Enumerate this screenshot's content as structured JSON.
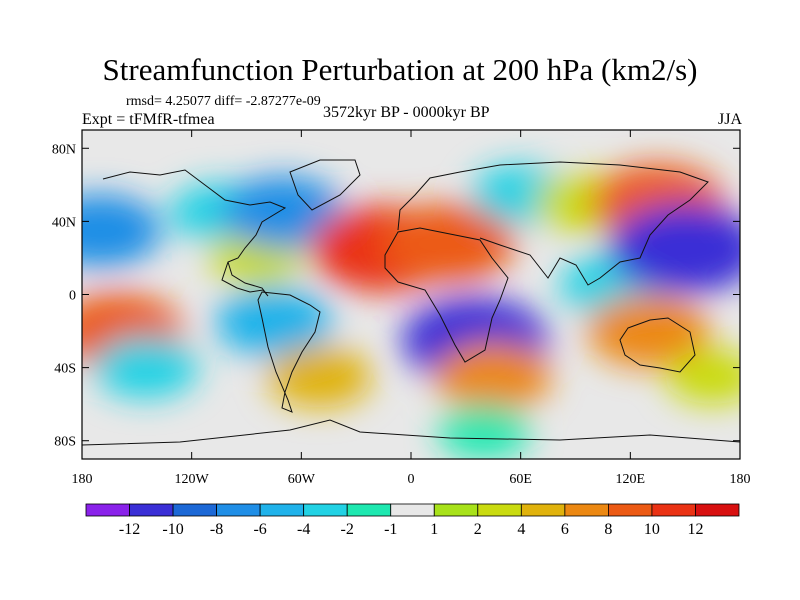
{
  "chart_data": {
    "type": "heatmap",
    "title": "Streamfunction Perturbation at 200 hPa (km2/s)",
    "stats_line": "rmsd= 4.25077 diff= -2.87277e-09",
    "left_label": "Expt = tFMfR-tfmea",
    "center_label": "3572kyr BP - 0000kyr BP",
    "right_label": "JJA",
    "xlim": [
      -180,
      180
    ],
    "ylim": [
      -90,
      90
    ],
    "y_ticks": [
      {
        "value": 80,
        "label": "80N"
      },
      {
        "value": 40,
        "label": "40N"
      },
      {
        "value": 0,
        "label": "0"
      },
      {
        "value": -40,
        "label": "40S"
      },
      {
        "value": -80,
        "label": "80S"
      }
    ],
    "x_ticks": [
      {
        "value": -180,
        "label": "180"
      },
      {
        "value": -120,
        "label": "120W"
      },
      {
        "value": -60,
        "label": "60W"
      },
      {
        "value": 0,
        "label": "0"
      },
      {
        "value": 60,
        "label": "60E"
      },
      {
        "value": 120,
        "label": "120E"
      },
      {
        "value": 180,
        "label": "180"
      }
    ],
    "colorbar": {
      "labels": [
        "-12",
        "-10",
        "-8",
        "-6",
        "-4",
        "-2",
        "-1",
        "1",
        "2",
        "4",
        "6",
        "8",
        "10",
        "12"
      ],
      "colors": [
        "#8a22ea",
        "#3a2fd6",
        "#1c68d6",
        "#1f8ee6",
        "#1fb2ea",
        "#22d2e4",
        "#1ee8b0",
        "#e8e8e8",
        "#a8e21a",
        "#cadb10",
        "#e0b20c",
        "#ec8812",
        "#ec5a14",
        "#ea3214",
        "#d81010"
      ]
    },
    "cells": [
      {
        "lon": -170,
        "lat": 35,
        "value": -7
      },
      {
        "lon": -160,
        "lat": -20,
        "value": 8
      },
      {
        "lon": -145,
        "lat": -40,
        "value": -4
      },
      {
        "lon": -105,
        "lat": 45,
        "value": -3
      },
      {
        "lon": -85,
        "lat": 20,
        "value": 2
      },
      {
        "lon": -70,
        "lat": 45,
        "value": -7
      },
      {
        "lon": -75,
        "lat": -15,
        "value": -6
      },
      {
        "lon": -50,
        "lat": -45,
        "value": 4
      },
      {
        "lon": -15,
        "lat": 25,
        "value": 11
      },
      {
        "lon": 20,
        "lat": 28,
        "value": 9
      },
      {
        "lon": 35,
        "lat": -25,
        "value": -11
      },
      {
        "lon": 60,
        "lat": 55,
        "value": -3
      },
      {
        "lon": 45,
        "lat": -45,
        "value": 6
      },
      {
        "lon": 95,
        "lat": 50,
        "value": 3
      },
      {
        "lon": 110,
        "lat": 5,
        "value": -4
      },
      {
        "lon": 135,
        "lat": 50,
        "value": 9
      },
      {
        "lon": 150,
        "lat": 25,
        "value": -12
      },
      {
        "lon": 130,
        "lat": -20,
        "value": 7
      },
      {
        "lon": 165,
        "lat": -45,
        "value": 2
      },
      {
        "lon": 40,
        "lat": -75,
        "value": -2
      }
    ]
  }
}
